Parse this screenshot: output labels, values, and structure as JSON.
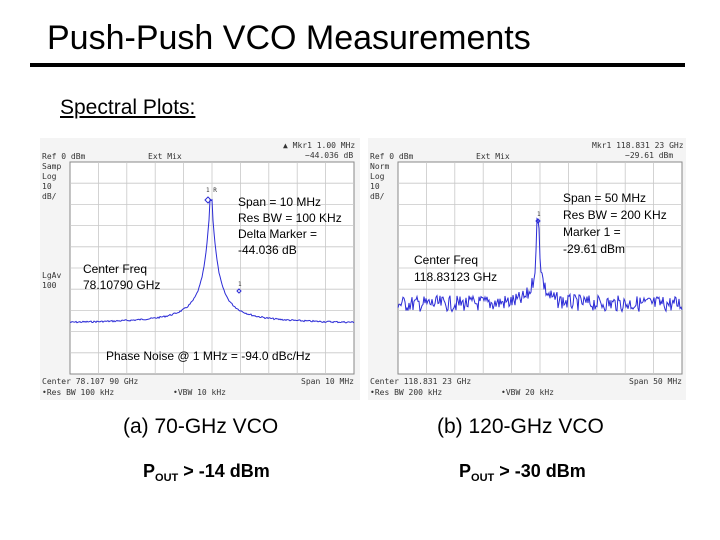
{
  "slide": {
    "title": "Push-Push VCO Measurements",
    "subtitle": "Spectral Plots:"
  },
  "plot_a": {
    "status": {
      "ref": "Ref 0 dBm",
      "mode": "Samp",
      "scale": "Log",
      "div": "10",
      "unit": "dB/",
      "mixer": "Ext Mix",
      "marker_line1": "▲ Mkr1  1.00 MHz",
      "marker_line2": "−44.036 dB",
      "avg1": "LgAv",
      "avg2": "100",
      "center": "Center 78.107 90 GHz",
      "span": "Span 10 MHz",
      "resbw": "•Res BW 100 kHz",
      "vbw": "•VBW 10 kHz",
      "marker_label_r": "1 R",
      "marker_label_1": "1"
    },
    "annotations": {
      "span": "Span = 10 MHz",
      "resbw": "Res BW = 100 KHz",
      "delta1": "Delta Marker =",
      "delta2": "-44.036 dB",
      "center_label": "Center Freq",
      "center_value": "78.10790 GHz",
      "phase_noise": "Phase Noise @ 1 MHz = -94.0 dBc/Hz"
    },
    "caption": "(a) 70-GHz VCO",
    "pout_p": "P",
    "pout_sub": "OUT",
    "pout_rest": " > -14 dBm"
  },
  "plot_b": {
    "status": {
      "ref": "Ref 0 dBm",
      "mode": "Norm",
      "scale": "Log",
      "div": "10",
      "unit": "dB/",
      "mixer": "Ext Mix",
      "marker_line1": "Mkr1  118.831 23 GHz",
      "marker_line2": "−29.61 dBm",
      "center": "Center 118.831 23 GHz",
      "span": "Span 50 MHz",
      "resbw": "•Res BW 200 kHz",
      "vbw": "•VBW 20 kHz",
      "marker_label_1": "1"
    },
    "annotations": {
      "span": "Span = 50 MHz",
      "resbw": "Res BW = 200 KHz",
      "marker1": "Marker 1 =",
      "marker1_value": "-29.61 dBm",
      "center_label": "Center Freq",
      "center_value": "118.83123 GHz"
    },
    "caption": "(b) 120-GHz VCO",
    "pout_p": "P",
    "pout_sub": "OUT",
    "pout_rest": " > -30 dBm"
  },
  "colors": {
    "trace": "#2b2bd6",
    "grid": "#c8c8c8",
    "screen_bg": "#ffffff"
  }
}
